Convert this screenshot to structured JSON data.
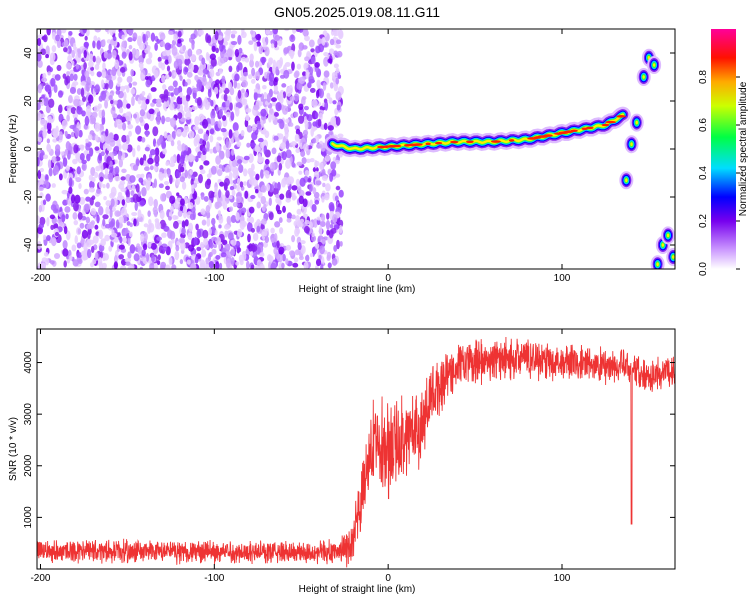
{
  "title": "GN05.2025.019.08.11.G11",
  "chart_data": [
    {
      "type": "heatmap",
      "title": "GN05.2025.019.08.11.G11",
      "xlabel": "Height of straight line (km)",
      "ylabel": "Frequency (Hz)",
      "xlim": [
        -202,
        165
      ],
      "ylim": [
        -50,
        50
      ],
      "xticks": [
        -200,
        -100,
        0,
        100
      ],
      "yticks": [
        -40,
        -20,
        0,
        20,
        40
      ],
      "grid": false,
      "noise_region_x": [
        -202,
        -27
      ],
      "signal_track": [
        {
          "x": -32,
          "freq": 2
        },
        {
          "x": -20,
          "freq": 0
        },
        {
          "x": 0,
          "freq": 1
        },
        {
          "x": 20,
          "freq": 2
        },
        {
          "x": 40,
          "freq": 3
        },
        {
          "x": 60,
          "freq": 3
        },
        {
          "x": 80,
          "freq": 4
        },
        {
          "x": 95,
          "freq": 6
        },
        {
          "x": 110,
          "freq": 8
        },
        {
          "x": 125,
          "freq": 10
        },
        {
          "x": 135,
          "freq": 14
        }
      ],
      "isolated_peaks": [
        {
          "x": 137,
          "freq": -13
        },
        {
          "x": 140,
          "freq": 2
        },
        {
          "x": 143,
          "freq": 11
        },
        {
          "x": 147,
          "freq": 30
        },
        {
          "x": 150,
          "freq": 38
        },
        {
          "x": 153,
          "freq": 35
        },
        {
          "x": 155,
          "freq": -48
        },
        {
          "x": 158,
          "freq": -40
        },
        {
          "x": 161,
          "freq": -36
        },
        {
          "x": 164,
          "freq": -45
        }
      ],
      "colorbar": {
        "label": "Normalized spectral amplitude",
        "range": [
          0.0,
          1.0
        ],
        "ticks": [
          "0.0",
          "0.2",
          "0.4",
          "0.6",
          "0.8"
        ],
        "colormap": "rainbow (white, violet, blue, cyan, green, yellow, orange, red, magenta)"
      }
    },
    {
      "type": "line",
      "xlabel": "Height of straight line (km)",
      "ylabel": "SNR (10 * v/v)",
      "xlim": [
        -202,
        165
      ],
      "ylim": [
        0,
        4650
      ],
      "xticks": [
        -200,
        -100,
        0,
        100
      ],
      "yticks": [
        1000,
        2000,
        3000,
        4000
      ],
      "grid": false,
      "color": "#ee3333",
      "profile": [
        {
          "x": -202,
          "y": 350
        },
        {
          "x": -100,
          "y": 330
        },
        {
          "x": -30,
          "y": 330
        },
        {
          "x": -20,
          "y": 500
        },
        {
          "x": -15,
          "y": 1400
        },
        {
          "x": -8,
          "y": 2600
        },
        {
          "x": 0,
          "y": 2300
        },
        {
          "x": 10,
          "y": 2600
        },
        {
          "x": 20,
          "y": 2800
        },
        {
          "x": 25,
          "y": 3300
        },
        {
          "x": 32,
          "y": 3700
        },
        {
          "x": 40,
          "y": 3950
        },
        {
          "x": 60,
          "y": 4050
        },
        {
          "x": 80,
          "y": 4100
        },
        {
          "x": 100,
          "y": 4000
        },
        {
          "x": 120,
          "y": 3950
        },
        {
          "x": 140,
          "y": 3900
        },
        {
          "x": 150,
          "y": 3750
        },
        {
          "x": 165,
          "y": 3850
        }
      ],
      "noise_amplitude": [
        {
          "x": -202,
          "y": 260
        },
        {
          "x": -30,
          "y": 260
        },
        {
          "x": -20,
          "y": 600
        },
        {
          "x": 0,
          "y": 1100
        },
        {
          "x": 25,
          "y": 800
        },
        {
          "x": 40,
          "y": 500
        },
        {
          "x": 165,
          "y": 380
        }
      ],
      "dip": {
        "x": 140,
        "y": 870
      }
    }
  ]
}
